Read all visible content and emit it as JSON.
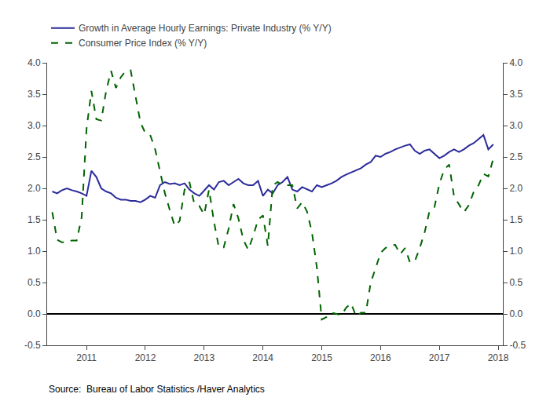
{
  "chart_data": {
    "type": "line",
    "annotations": [
      "Source:  Bureau of Labor Statistics /Haver Analytics"
    ],
    "x": [
      2010.417,
      2010.5,
      2010.583,
      2010.667,
      2010.75,
      2010.833,
      2010.917,
      2011.0,
      2011.083,
      2011.167,
      2011.25,
      2011.333,
      2011.417,
      2011.5,
      2011.583,
      2011.667,
      2011.75,
      2011.833,
      2011.917,
      2012.0,
      2012.083,
      2012.167,
      2012.25,
      2012.333,
      2012.417,
      2012.5,
      2012.583,
      2012.667,
      2012.75,
      2012.833,
      2012.917,
      2013.0,
      2013.083,
      2013.167,
      2013.25,
      2013.333,
      2013.417,
      2013.5,
      2013.583,
      2013.667,
      2013.75,
      2013.833,
      2013.917,
      2014.0,
      2014.083,
      2014.167,
      2014.25,
      2014.333,
      2014.417,
      2014.5,
      2014.583,
      2014.667,
      2014.75,
      2014.833,
      2014.917,
      2015.0,
      2015.083,
      2015.167,
      2015.25,
      2015.333,
      2015.417,
      2015.5,
      2015.583,
      2015.667,
      2015.75,
      2015.833,
      2015.917,
      2016.0,
      2016.083,
      2016.167,
      2016.25,
      2016.333,
      2016.417,
      2016.5,
      2016.583,
      2016.667,
      2016.75,
      2016.833,
      2016.917,
      2017.0,
      2017.083,
      2017.167,
      2017.25,
      2017.333,
      2017.417,
      2017.5,
      2017.583,
      2017.667,
      2017.75,
      2017.833,
      2017.917
    ],
    "series": [
      {
        "name": "Growth in Average Hourly Earnings: Private Industry (% Y/Y)",
        "color": "#2b2b9b",
        "line_style": "solid",
        "values": [
          1.95,
          1.92,
          1.97,
          2.0,
          1.97,
          1.95,
          1.92,
          1.88,
          2.28,
          2.18,
          2.0,
          1.95,
          1.92,
          1.85,
          1.82,
          1.82,
          1.8,
          1.8,
          1.78,
          1.82,
          1.88,
          1.85,
          2.05,
          2.1,
          2.07,
          2.08,
          2.05,
          2.08,
          1.98,
          1.92,
          1.88,
          1.97,
          2.05,
          1.98,
          2.1,
          2.12,
          2.05,
          2.1,
          2.15,
          2.08,
          2.05,
          2.05,
          2.12,
          1.88,
          1.98,
          1.92,
          2.05,
          2.1,
          2.18,
          1.98,
          1.95,
          2.02,
          1.98,
          1.95,
          2.05,
          2.02,
          2.05,
          2.08,
          2.12,
          2.18,
          2.22,
          2.25,
          2.28,
          2.32,
          2.38,
          2.42,
          2.52,
          2.5,
          2.55,
          2.58,
          2.62,
          2.65,
          2.68,
          2.7,
          2.6,
          2.55,
          2.6,
          2.62,
          2.55,
          2.48,
          2.52,
          2.58,
          2.62,
          2.58,
          2.62,
          2.68,
          2.72,
          2.78,
          2.85,
          2.62,
          2.7
        ]
      },
      {
        "name": "Consumer Price Index (% Y/Y)",
        "color": "#006400",
        "line_style": "dashed",
        "values": [
          1.62,
          1.18,
          1.14,
          1.14,
          1.17,
          1.17,
          1.54,
          2.95,
          3.55,
          3.1,
          3.08,
          3.55,
          3.87,
          3.6,
          3.77,
          3.87,
          3.88,
          3.45,
          3.05,
          2.88,
          2.85,
          2.62,
          2.28,
          1.92,
          1.65,
          1.4,
          1.48,
          1.98,
          2.1,
          1.75,
          1.72,
          1.58,
          1.98,
          1.47,
          1.06,
          1.06,
          1.36,
          1.75,
          1.52,
          1.18,
          1.02,
          1.24,
          1.5,
          1.57,
          1.08,
          2.05,
          2.1,
          2.05,
          2.05,
          2.05,
          1.68,
          1.78,
          1.63,
          1.3,
          0.74,
          -0.09,
          -0.05,
          0.02,
          0.0,
          -0.02,
          0.1,
          0.17,
          -0.04,
          0.02,
          0.02,
          0.5,
          0.73,
          0.97,
          1.05,
          1.09,
          1.1,
          0.95,
          1.05,
          0.82,
          0.84,
          1.05,
          1.3,
          1.64,
          1.7,
          2.07,
          2.3,
          2.38,
          1.87,
          1.74,
          1.62,
          1.73,
          1.94,
          2.05,
          2.23,
          2.19,
          2.47
        ]
      }
    ],
    "xlim": [
      2010.33,
      2018.08
    ],
    "xticks": [
      2011,
      2012,
      2013,
      2014,
      2015,
      2016,
      2017,
      2018
    ],
    "ylim": [
      -0.5,
      4.0
    ],
    "yticks": [
      -0.5,
      {
        "value": 0.0,
        "label": "0.0"
      },
      0.5,
      {
        "value": 1.0,
        "label": "1.0"
      },
      1.5,
      {
        "value": 2.0,
        "label": "2.0"
      },
      2.5,
      {
        "value": 3.0,
        "label": "3.0"
      },
      3.5,
      {
        "value": 4.0,
        "label": "4.0"
      }
    ],
    "y2lim": [
      -0.5,
      4.0
    ],
    "y2ticks": [
      -0.5,
      {
        "value": 0.0,
        "label": "0.0"
      },
      0.5,
      {
        "value": 1.0,
        "label": "1.0"
      },
      1.5,
      {
        "value": 2.0,
        "label": "2.0"
      },
      2.5,
      {
        "value": 3.0,
        "label": "3.0"
      },
      3.5,
      {
        "value": 4.0,
        "label": "4.0"
      }
    ],
    "grid": false,
    "legend": "top"
  }
}
